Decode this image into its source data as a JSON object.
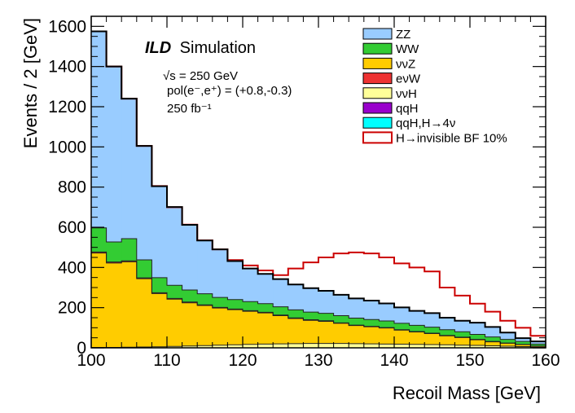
{
  "chart_data": {
    "type": "stacked-histogram",
    "xlabel": "Recoil Mass [GeV]",
    "ylabel": "Events / 2 [GeV]",
    "xlim": [
      100,
      160
    ],
    "ylim": [
      0,
      1650
    ],
    "bin_width": 2,
    "x_ticks": [
      100,
      110,
      120,
      130,
      140,
      150,
      160
    ],
    "y_ticks": [
      0,
      200,
      400,
      600,
      800,
      1000,
      1200,
      1400,
      1600
    ],
    "annotations": {
      "experiment": "ILD",
      "experiment_suffix": "Simulation",
      "sqrt_s": "√s = 250 GeV",
      "polarization": "pol(e⁻,e⁺) = (+0.8,-0.3)",
      "luminosity": "250 fb⁻¹"
    },
    "bin_edges": [
      100,
      102,
      104,
      106,
      108,
      110,
      112,
      114,
      116,
      118,
      120,
      122,
      124,
      126,
      128,
      130,
      132,
      134,
      136,
      138,
      140,
      142,
      144,
      146,
      148,
      150,
      152,
      154,
      156,
      158,
      160
    ],
    "series": [
      {
        "name": "ννH",
        "color": "#ffff99",
        "values": [
          2,
          2,
          3,
          4,
          5,
          7,
          9,
          11,
          13,
          15,
          17,
          19,
          20,
          21,
          22,
          22,
          22,
          21,
          20,
          19,
          18,
          17,
          16,
          15,
          13,
          12,
          10,
          8,
          6,
          3
        ]
      },
      {
        "name": "ννZ",
        "color": "#ffcc00",
        "values": [
          470,
          420,
          425,
          340,
          265,
          235,
          215,
          200,
          185,
          175,
          165,
          155,
          140,
          125,
          115,
          110,
          100,
          90,
          85,
          80,
          70,
          62,
          55,
          45,
          38,
          28,
          20,
          15,
          10,
          5
        ]
      },
      {
        "name": "eνW",
        "color": "#ee3333",
        "values": [
          5,
          5,
          5,
          4,
          4,
          4,
          4,
          3,
          3,
          3,
          3,
          3,
          3,
          3,
          3,
          3,
          2,
          2,
          2,
          2,
          2,
          2,
          2,
          2,
          2,
          2,
          2,
          1,
          1,
          1
        ]
      },
      {
        "name": "WW",
        "color": "#33cc33",
        "values": [
          120,
          100,
          110,
          90,
          75,
          65,
          60,
          55,
          50,
          47,
          45,
          43,
          41,
          40,
          38,
          37,
          36,
          35,
          34,
          33,
          32,
          31,
          30,
          28,
          27,
          25,
          22,
          18,
          15,
          10
        ]
      },
      {
        "name": "ZZ",
        "color": "#99ccff",
        "values": [
          978,
          873,
          697,
          567,
          455,
          390,
          324,
          265,
          239,
          192,
          165,
          148,
          138,
          126,
          119,
          112,
          104,
          98,
          94,
          87,
          79,
          72,
          70,
          60,
          55,
          58,
          50,
          34,
          16,
          13
        ]
      }
    ],
    "legend_order": [
      "ZZ",
      "WW",
      "ννZ",
      "eνW",
      "ννH",
      "qqH",
      "qqH,H→4ν",
      "H→invisible BF 10%"
    ],
    "legend_colors": {
      "ZZ": "#99ccff",
      "WW": "#33cc33",
      "ννZ": "#ffcc00",
      "eνW": "#ee3333",
      "ννH": "#ffff99",
      "qqH": "#9900cc",
      "qqH,H→4ν": "#00ffff"
    },
    "signal": {
      "name": "H→invisible BF 10%",
      "color": "#cc0000",
      "total_values": [
        1575,
        1400,
        1240,
        1005,
        805,
        700,
        613,
        535,
        490,
        437,
        410,
        385,
        362,
        395,
        425,
        450,
        470,
        475,
        470,
        450,
        420,
        400,
        380,
        300,
        260,
        220,
        180,
        135,
        100,
        60
      ]
    },
    "legend_labels": [
      "ZZ",
      "WW",
      "ννZ",
      "eνW",
      "ννH",
      "qqH",
      "qqH,H→4ν",
      "H→invisible BF 10%"
    ]
  }
}
